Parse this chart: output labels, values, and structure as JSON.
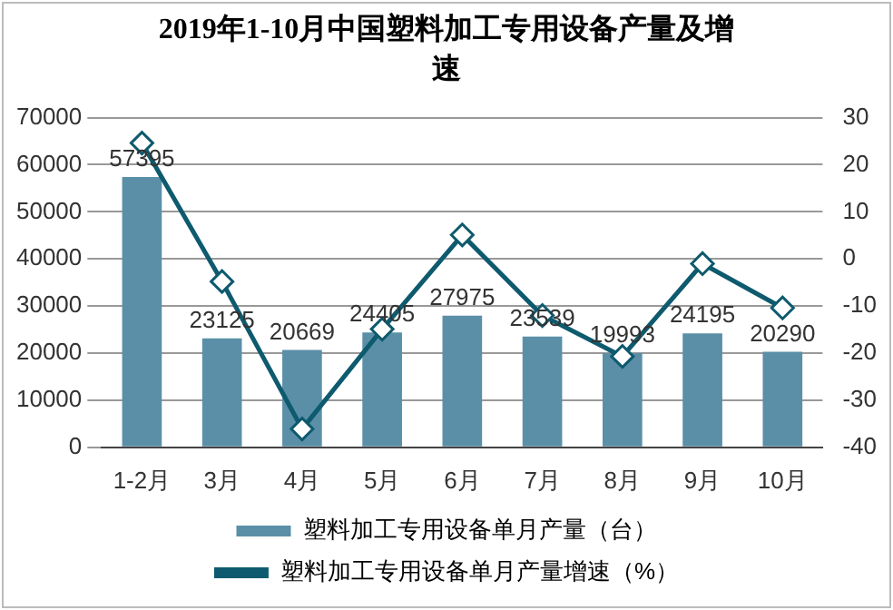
{
  "chart_data": {
    "type": "bar",
    "title": "2019年1-10月中国塑料加工专用设备产量及增速",
    "categories": [
      "1-2月",
      "3月",
      "4月",
      "5月",
      "6月",
      "7月",
      "8月",
      "9月",
      "10月"
    ],
    "series": [
      {
        "name": "塑料加工专用设备单月产量（台）",
        "color": "#5b8fa8",
        "values": [
          57395,
          23125,
          20669,
          24405,
          27975,
          23539,
          19993,
          24195,
          20290
        ],
        "value_labels": [
          "57395",
          "23125",
          "20669",
          "24405",
          "27975",
          "23539",
          "19993",
          "24195",
          "20290"
        ]
      },
      {
        "name": "塑料加工专用设备单月产量增速（%）",
        "type": "line",
        "axis": "y2",
        "color": "#0e5a6e",
        "marker": "diamond",
        "values": [
          24.6,
          -4.8,
          -36.1,
          -14.9,
          5.1,
          -12,
          -20.7,
          -1,
          -10.4
        ]
      }
    ],
    "ylim": [
      0,
      70000
    ],
    "yticks": [
      0,
      10000,
      20000,
      30000,
      40000,
      50000,
      60000,
      70000
    ],
    "y2lim": [
      -40,
      30
    ],
    "y2ticks": [
      -40,
      -30,
      -20,
      -10,
      0,
      10,
      20,
      30
    ],
    "grid": "y",
    "legend": "bottom"
  }
}
